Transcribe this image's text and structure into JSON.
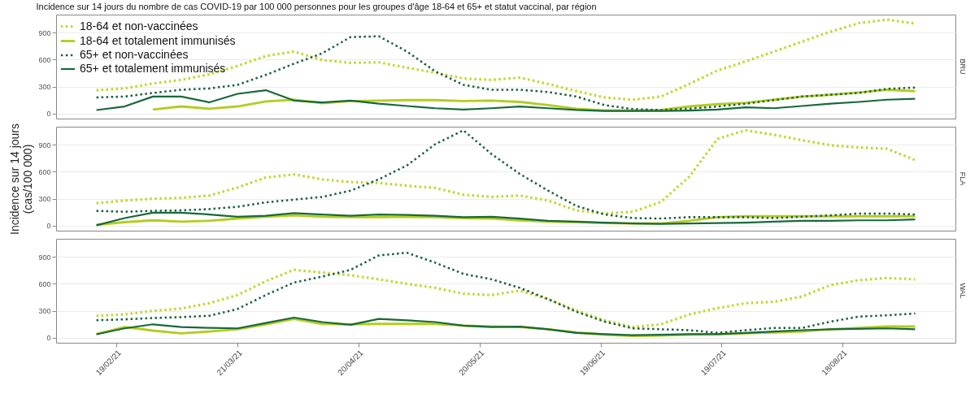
{
  "chart_data": [
    {
      "type": "line",
      "title": "Incidence sur 14 jours du nombre de cas COVID-19 par 100 000 personnes pour les groupes d'âge 18-64 et 65+ et statut vaccinal, par région",
      "subtitle": "BRU",
      "legend": "top left",
      "grid": "y",
      "tick_labels": "y",
      "x": [
        "2021-02-14",
        "2021-02-21",
        "2021-02-28",
        "2021-03-07",
        "2021-03-14",
        "2021-03-21",
        "2021-03-28",
        "2021-04-04",
        "2021-04-11",
        "2021-04-18",
        "2021-04-25",
        "2021-05-02",
        "2021-05-09",
        "2021-05-16",
        "2021-05-23",
        "2021-05-30",
        "2021-06-06",
        "2021-06-13",
        "2021-06-20",
        "2021-06-27",
        "2021-07-04",
        "2021-07-11",
        "2021-07-18",
        "2021-07-25",
        "2021-08-01",
        "2021-08-08",
        "2021-08-15",
        "2021-08-22",
        "2021-08-29",
        "2021-09-05"
      ],
      "xlim": [
        "2021-02-04",
        "2021-09-15"
      ],
      "ylim": [
        -55,
        1100
      ],
      "yticks": [
        0,
        300,
        600,
        900
      ],
      "series": [
        {
          "name": "18-64 et non-vaccinées",
          "color": "#c3d62a",
          "line_style": "dotted",
          "values": [
            260,
            280,
            335,
            375,
            437,
            530,
            640,
            690,
            595,
            565,
            570,
            510,
            455,
            390,
            375,
            400,
            330,
            250,
            180,
            155,
            190,
            330,
            480,
            580,
            690,
            800,
            910,
            1005,
            1045,
            1000
          ]
        },
        {
          "name": "18-64 et totalement immunisés",
          "color": "#b4cc1f",
          "line_style": "solid",
          "values": [
            null,
            null,
            45,
            80,
            55,
            80,
            135,
            155,
            115,
            140,
            145,
            150,
            150,
            140,
            145,
            130,
            95,
            55,
            35,
            35,
            40,
            80,
            105,
            120,
            155,
            190,
            210,
            235,
            265,
            250
          ]
        },
        {
          "name": "65+ et non-vaccinées",
          "color": "#1b6040",
          "line_style": "dotted",
          "values": [
            180,
            190,
            230,
            265,
            280,
            320,
            430,
            555,
            670,
            850,
            860,
            690,
            470,
            320,
            265,
            265,
            240,
            190,
            95,
            50,
            40,
            55,
            80,
            110,
            150,
            190,
            210,
            230,
            275,
            290
          ]
        },
        {
          "name": "65+ et totalement immunisés",
          "color": "#17693a",
          "line_style": "solid",
          "values": [
            40,
            80,
            190,
            190,
            125,
            220,
            260,
            145,
            125,
            145,
            110,
            85,
            60,
            45,
            60,
            80,
            60,
            40,
            30,
            30,
            30,
            35,
            45,
            70,
            60,
            85,
            110,
            130,
            155,
            165
          ]
        }
      ]
    },
    {
      "type": "line",
      "subtitle": "FLA",
      "ylabel": "Incidence sur 14 jours\n(cas/100 000)",
      "legend": false,
      "grid": "y",
      "tick_labels": "y",
      "x": [
        "2021-02-14",
        "2021-02-21",
        "2021-02-28",
        "2021-03-07",
        "2021-03-14",
        "2021-03-21",
        "2021-03-28",
        "2021-04-04",
        "2021-04-11",
        "2021-04-18",
        "2021-04-25",
        "2021-05-02",
        "2021-05-09",
        "2021-05-16",
        "2021-05-23",
        "2021-05-30",
        "2021-06-06",
        "2021-06-13",
        "2021-06-20",
        "2021-06-27",
        "2021-07-04",
        "2021-07-11",
        "2021-07-18",
        "2021-07-25",
        "2021-08-01",
        "2021-08-08",
        "2021-08-15",
        "2021-08-22",
        "2021-08-29",
        "2021-09-05"
      ],
      "xlim": [
        "2021-02-04",
        "2021-09-15"
      ],
      "ylim": [
        -55,
        1100
      ],
      "yticks": [
        0,
        300,
        600,
        900
      ],
      "series": [
        {
          "color": "#c3d62a",
          "line_style": "dotted",
          "values": [
            250,
            280,
            300,
            310,
            335,
            425,
            535,
            570,
            515,
            485,
            475,
            445,
            420,
            345,
            320,
            335,
            280,
            170,
            135,
            155,
            265,
            545,
            965,
            1060,
            1010,
            950,
            895,
            870,
            855,
            730
          ]
        },
        {
          "color": "#b4cc1f",
          "line_style": "solid",
          "values": [
            10,
            40,
            60,
            45,
            55,
            80,
            100,
            115,
            100,
            95,
            95,
            100,
            95,
            85,
            80,
            60,
            45,
            40,
            30,
            25,
            25,
            55,
            95,
            105,
            105,
            105,
            105,
            105,
            105,
            105
          ]
        },
        {
          "color": "#1b6040",
          "line_style": "dotted",
          "values": [
            165,
            155,
            165,
            170,
            185,
            210,
            260,
            290,
            320,
            390,
            515,
            670,
            905,
            1060,
            795,
            575,
            390,
            220,
            125,
            85,
            80,
            95,
            95,
            95,
            85,
            100,
            115,
            135,
            135,
            125
          ]
        },
        {
          "color": "#17693a",
          "line_style": "solid",
          "values": [
            5,
            85,
            145,
            145,
            125,
            100,
            110,
            140,
            125,
            110,
            125,
            120,
            110,
            95,
            100,
            80,
            55,
            45,
            35,
            25,
            20,
            25,
            30,
            35,
            45,
            55,
            55,
            60,
            60,
            70
          ]
        }
      ]
    },
    {
      "type": "line",
      "subtitle": "WAL",
      "legend": false,
      "grid": "y",
      "x": [
        "2021-02-14",
        "2021-02-21",
        "2021-02-28",
        "2021-03-07",
        "2021-03-14",
        "2021-03-21",
        "2021-03-28",
        "2021-04-04",
        "2021-04-11",
        "2021-04-18",
        "2021-04-25",
        "2021-05-02",
        "2021-05-09",
        "2021-05-16",
        "2021-05-23",
        "2021-05-30",
        "2021-06-06",
        "2021-06-13",
        "2021-06-20",
        "2021-06-27",
        "2021-07-04",
        "2021-07-11",
        "2021-07-18",
        "2021-07-25",
        "2021-08-01",
        "2021-08-08",
        "2021-08-15",
        "2021-08-22",
        "2021-08-29",
        "2021-09-05"
      ],
      "xlim": [
        "2021-02-04",
        "2021-09-15"
      ],
      "xticks": [
        {
          "value": "2021-02-19",
          "label": "19/02/21"
        },
        {
          "value": "2021-03-21",
          "label": "21/03/21"
        },
        {
          "value": "2021-04-20",
          "label": "20/04/21"
        },
        {
          "value": "2021-05-20",
          "label": "20/05/21"
        },
        {
          "value": "2021-06-19",
          "label": "19/06/21"
        },
        {
          "value": "2021-07-19",
          "label": "19/07/21"
        },
        {
          "value": "2021-08-18",
          "label": "18/08/21"
        }
      ],
      "ylim": [
        -55,
        1100
      ],
      "yticks": [
        0,
        300,
        600,
        900
      ],
      "series": [
        {
          "color": "#c3d62a",
          "line_style": "dotted",
          "values": [
            245,
            260,
            300,
            325,
            385,
            475,
            630,
            755,
            725,
            695,
            650,
            600,
            555,
            490,
            475,
            525,
            430,
            305,
            195,
            120,
            150,
            260,
            330,
            385,
            400,
            460,
            585,
            640,
            665,
            650
          ]
        },
        {
          "color": "#b4cc1f",
          "line_style": "solid",
          "values": [
            40,
            120,
            80,
            50,
            70,
            95,
            150,
            210,
            155,
            150,
            155,
            155,
            155,
            135,
            125,
            120,
            95,
            60,
            35,
            20,
            25,
            35,
            40,
            50,
            60,
            70,
            95,
            110,
            125,
            125
          ]
        },
        {
          "color": "#1b6040",
          "line_style": "dotted",
          "values": [
            195,
            205,
            220,
            230,
            245,
            320,
            475,
            615,
            680,
            755,
            915,
            945,
            835,
            710,
            650,
            555,
            430,
            290,
            180,
            105,
            95,
            85,
            55,
            85,
            110,
            110,
            180,
            235,
            250,
            270
          ]
        },
        {
          "color": "#17693a",
          "line_style": "solid",
          "values": [
            40,
            105,
            150,
            120,
            110,
            105,
            165,
            225,
            175,
            145,
            210,
            195,
            175,
            135,
            120,
            125,
            95,
            55,
            40,
            30,
            35,
            40,
            40,
            55,
            70,
            85,
            95,
            100,
            105,
            95
          ]
        }
      ]
    }
  ]
}
